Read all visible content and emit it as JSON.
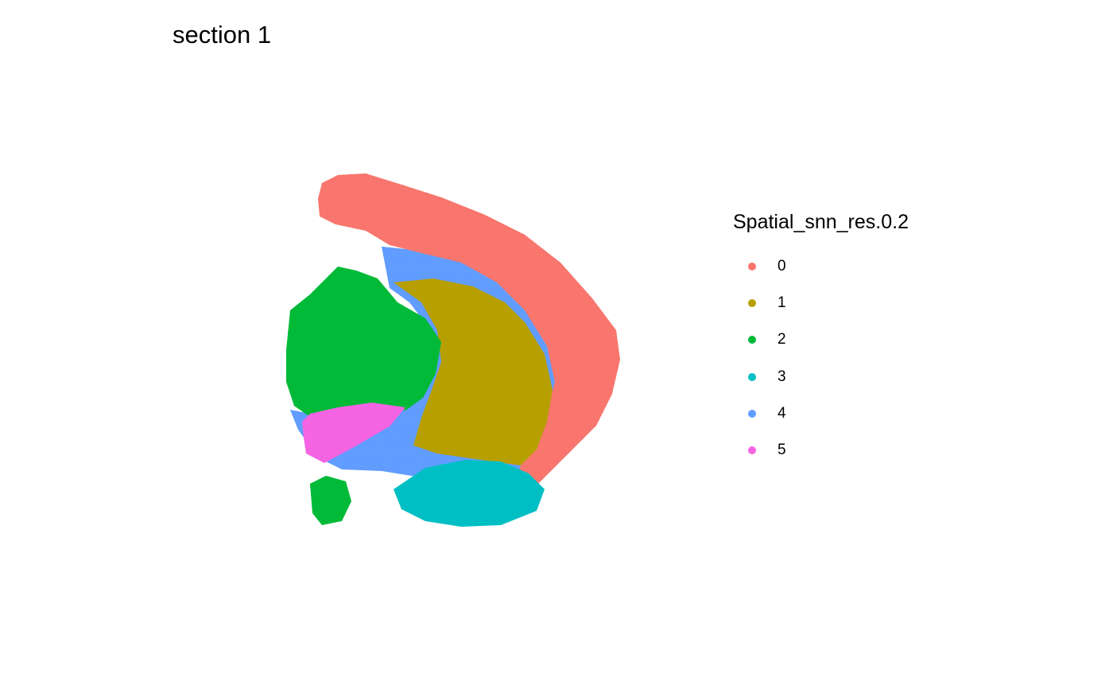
{
  "title": "section 1",
  "chart_data": {
    "type": "scatter",
    "title": "section 1",
    "xlabel": "",
    "ylabel": "",
    "grid": false,
    "legend_position": "right",
    "legend_title": "Spatial_snn_res.0.2",
    "series": [
      {
        "name": "0",
        "color": "#F8766D"
      },
      {
        "name": "1",
        "color": "#B79F00"
      },
      {
        "name": "2",
        "color": "#00BA38"
      },
      {
        "name": "3",
        "color": "#00BFC4"
      },
      {
        "name": "4",
        "color": "#619CFF"
      },
      {
        "name": "5",
        "color": "#F564E3"
      }
    ]
  }
}
